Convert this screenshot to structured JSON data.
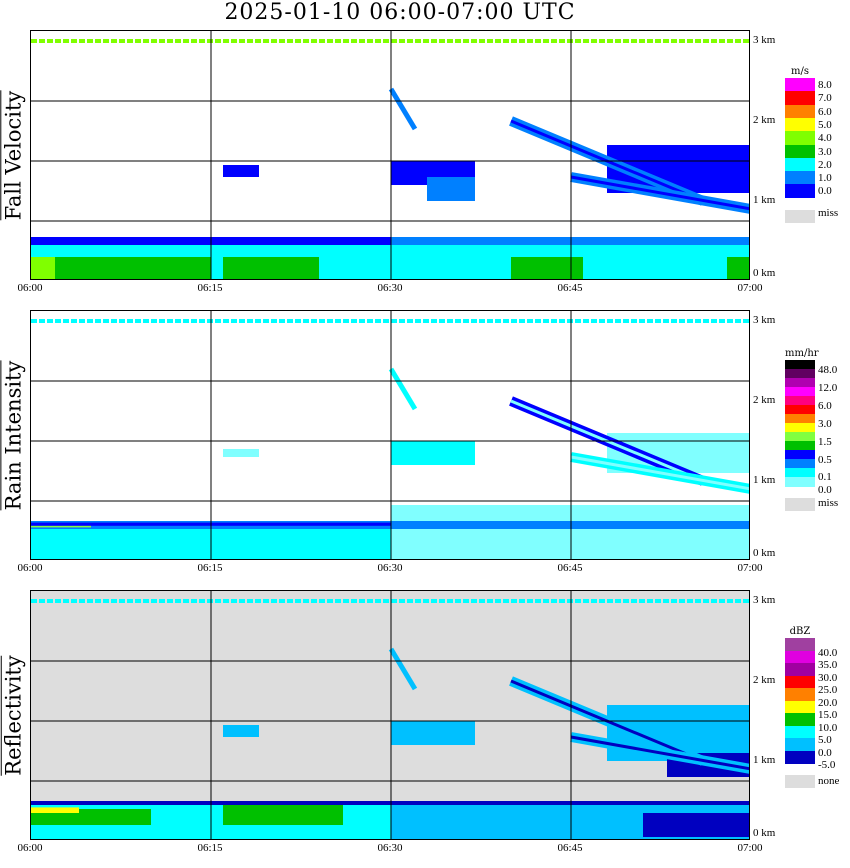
{
  "title": "2025-01-10   06:00-07:00 UTC",
  "chart_data": {
    "type": "heatmap",
    "title": "2025-01-10   06:00-07:00 UTC",
    "x_ticks": [
      "06:00",
      "06:15",
      "06:30",
      "06:45",
      "07:00"
    ],
    "y_ticks": [
      "0 km",
      "1 km",
      "2 km",
      "3 km"
    ],
    "ylim_km": [
      0,
      3
    ],
    "panels": [
      {
        "ylabel": "Fall Velocity",
        "unit": "m/s",
        "levels": [
          "8.0",
          "7.0",
          "6.0",
          "5.0",
          "4.0",
          "3.0",
          "2.0",
          "1.0",
          "0.0"
        ],
        "colors": [
          "#ff00ff",
          "#ff0000",
          "#ff8000",
          "#ffff00",
          "#80ff00",
          "#00c000",
          "#00ffff",
          "#0080ff",
          "#0000ff"
        ],
        "missing_label": "miss",
        "missing_color": "#dddddd",
        "background": "#ffffff"
      },
      {
        "ylabel": "Rain Intensity",
        "unit": "mm/hr",
        "levels": [
          "48.0",
          "",
          "12.0",
          "",
          "6.0",
          "",
          "3.0",
          "",
          "1.5",
          "",
          "0.5",
          "",
          "0.1",
          "0.0"
        ],
        "colors": [
          "#000000",
          "#600060",
          "#b000b0",
          "#ff00ff",
          "#ff0080",
          "#ff0000",
          "#ff8000",
          "#ffff00",
          "#80ff40",
          "#00c000",
          "#0000ff",
          "#0080ff",
          "#00ffff",
          "#80ffff"
        ],
        "missing_label": "miss",
        "missing_color": "#dddddd",
        "background": "#ffffff"
      },
      {
        "ylabel": "Reflectivity",
        "unit": "dBZ",
        "levels": [
          "40.0",
          "35.0",
          "30.0",
          "25.0",
          "20.0",
          "15.0",
          "10.0",
          "5.0",
          "0.0",
          "-5.0"
        ],
        "colors": [
          "#a040a0",
          "#e000e0",
          "#a000a0",
          "#ff0000",
          "#ff8000",
          "#ffff00",
          "#00c000",
          "#00ffff",
          "#00c0ff",
          "#0000c0"
        ],
        "missing_label": "none",
        "missing_color": "#dddddd",
        "background": "#dddddd"
      }
    ]
  }
}
